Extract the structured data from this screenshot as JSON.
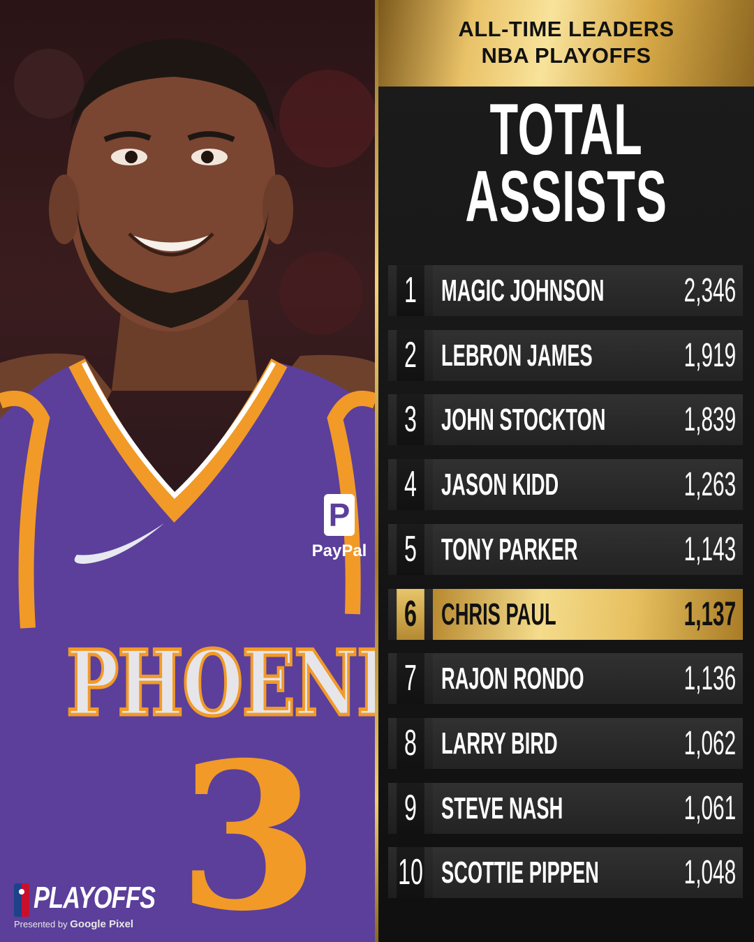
{
  "header": {
    "line1": "ALL-TIME LEADERS",
    "line2": "NBA PLAYOFFS"
  },
  "title": {
    "line1": "TOTAL",
    "line2": "ASSISTS"
  },
  "photo": {
    "jersey_text": "PHOENIX",
    "jersey_number": "3",
    "sponsor": "PayPal"
  },
  "brand": {
    "logo_icon": "nba-logo",
    "playoffs": "PLAYOFFS",
    "presented_by": "Presented by",
    "sponsor": "Google Pixel"
  },
  "leaders": [
    {
      "rank": "1",
      "name": "MAGIC JOHNSON",
      "value": "2,346"
    },
    {
      "rank": "2",
      "name": "LEBRON JAMES",
      "value": "1,919"
    },
    {
      "rank": "3",
      "name": "JOHN STOCKTON",
      "value": "1,839"
    },
    {
      "rank": "4",
      "name": "JASON KIDD",
      "value": "1,263"
    },
    {
      "rank": "5",
      "name": "TONY PARKER",
      "value": "1,143"
    },
    {
      "rank": "6",
      "name": "CHRIS PAUL",
      "value": "1,137",
      "highlight": true
    },
    {
      "rank": "7",
      "name": "RAJON RONDO",
      "value": "1,136"
    },
    {
      "rank": "8",
      "name": "LARRY BIRD",
      "value": "1,062"
    },
    {
      "rank": "9",
      "name": "STEVE NASH",
      "value": "1,061"
    },
    {
      "rank": "10",
      "name": "SCOTTIE PIPPEN",
      "value": "1,048"
    }
  ],
  "colors": {
    "gold": "#e9c268",
    "jersey_purple": "#5b3f9a",
    "jersey_orange": "#f29a28"
  }
}
